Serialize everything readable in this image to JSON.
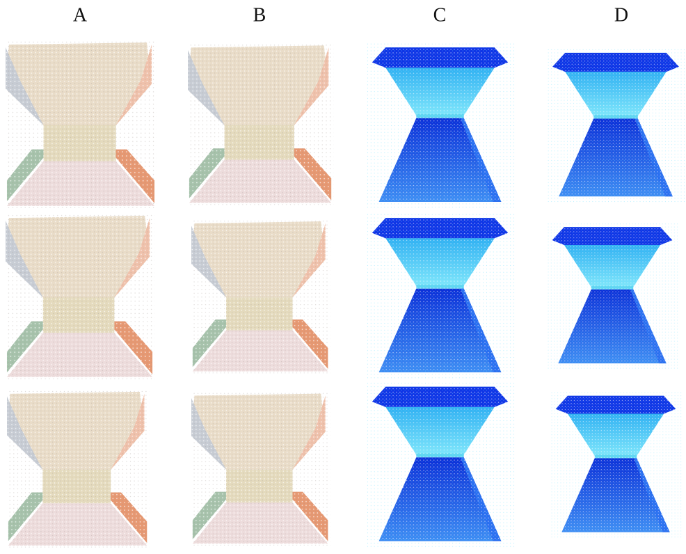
{
  "column_labels": [
    "A",
    "B",
    "C",
    "D"
  ]
}
